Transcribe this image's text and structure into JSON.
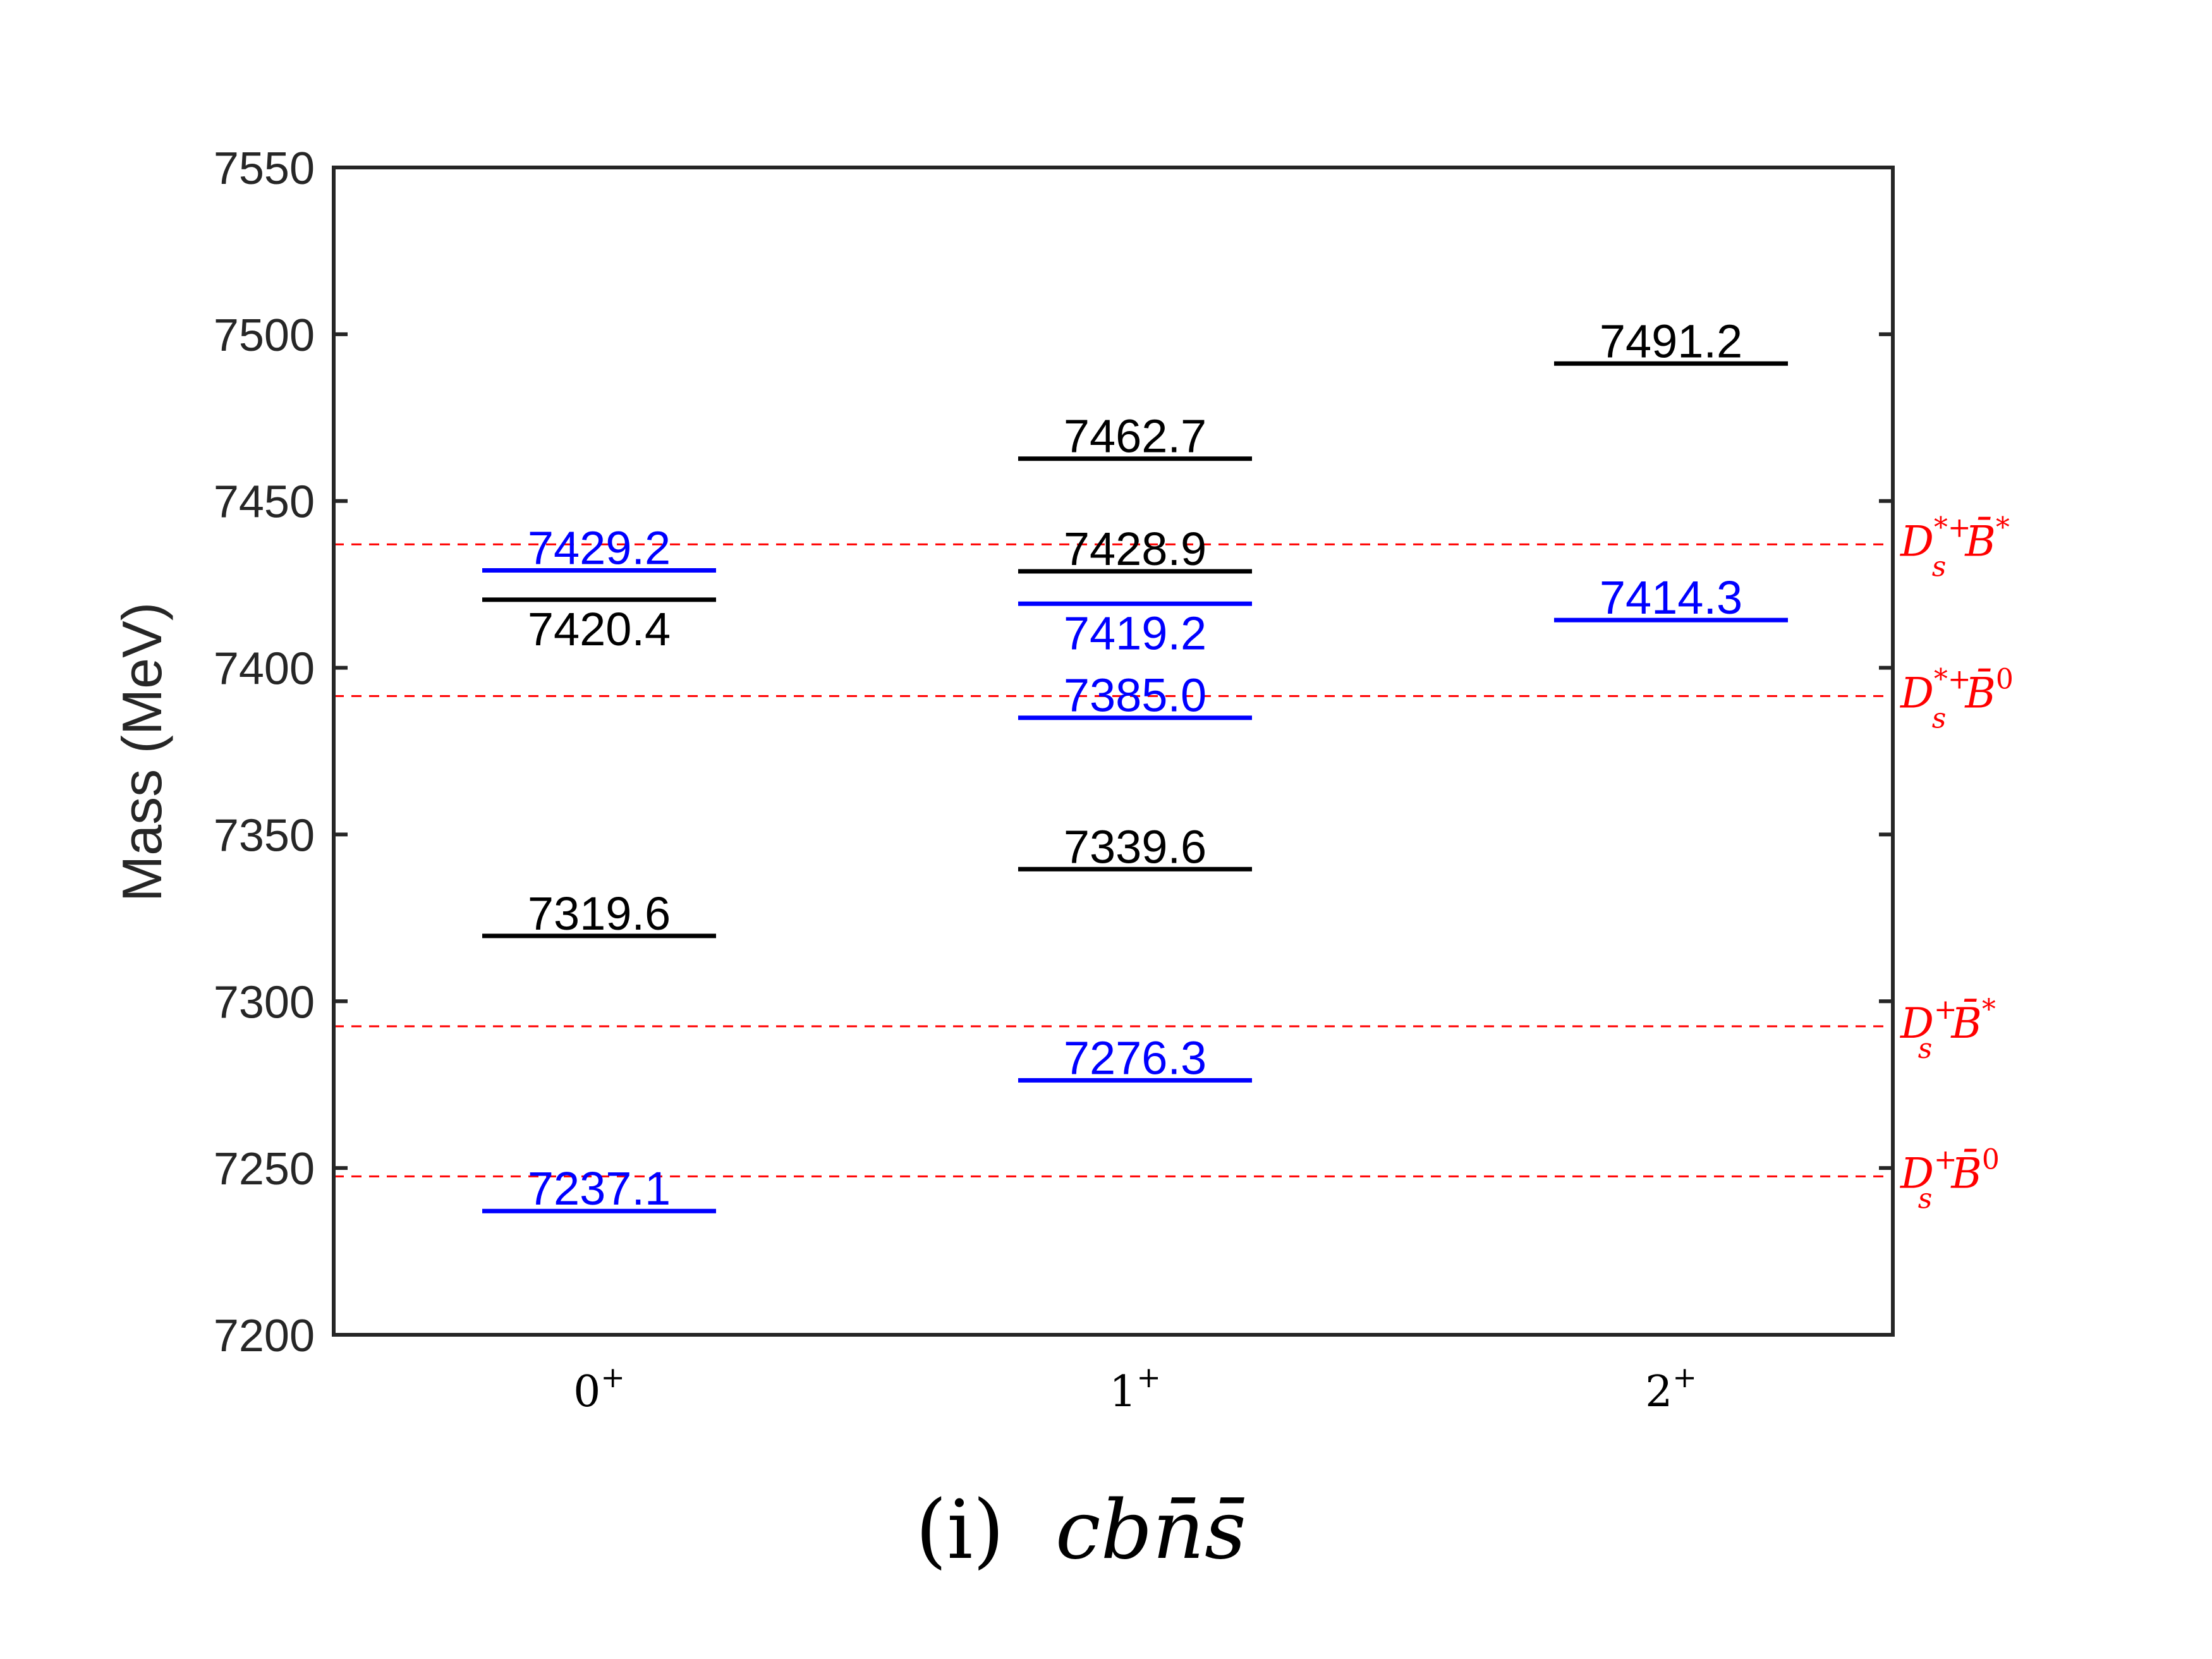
{
  "chart_data": {
    "type": "level-diagram",
    "ylabel": "Mass (MeV)",
    "ylim": [
      7200,
      7550
    ],
    "yticks": [
      "7200",
      "7250",
      "7300",
      "7350",
      "7400",
      "7450",
      "7500",
      "7550"
    ],
    "categories": [
      {
        "base": "0",
        "sup": "+"
      },
      {
        "base": "1",
        "sup": "+"
      },
      {
        "base": "2",
        "sup": "+"
      }
    ],
    "colors": {
      "black": "#000000",
      "blue": "#0000ff",
      "threshold": "#ff0000",
      "axis": "#262626"
    },
    "levels": [
      {
        "category": 0,
        "value": 7429.2,
        "label": "7429.2",
        "color": "blue",
        "label_pos": "above"
      },
      {
        "category": 0,
        "value": 7420.4,
        "label": "7420.4",
        "color": "black",
        "label_pos": "below"
      },
      {
        "category": 0,
        "value": 7319.6,
        "label": "7319.6",
        "color": "black",
        "label_pos": "above"
      },
      {
        "category": 0,
        "value": 7237.1,
        "label": "7237.1",
        "color": "blue",
        "label_pos": "above"
      },
      {
        "category": 1,
        "value": 7462.7,
        "label": "7462.7",
        "color": "black",
        "label_pos": "above"
      },
      {
        "category": 1,
        "value": 7428.9,
        "label": "7428.9",
        "color": "black",
        "label_pos": "above"
      },
      {
        "category": 1,
        "value": 7419.2,
        "label": "7419.2",
        "color": "blue",
        "label_pos": "below"
      },
      {
        "category": 1,
        "value": 7385.0,
        "label": "7385.0",
        "color": "blue",
        "label_pos": "above"
      },
      {
        "category": 1,
        "value": 7339.6,
        "label": "7339.6",
        "color": "black",
        "label_pos": "above"
      },
      {
        "category": 1,
        "value": 7276.3,
        "label": "7276.3",
        "color": "blue",
        "label_pos": "above"
      },
      {
        "category": 2,
        "value": 7491.2,
        "label": "7491.2",
        "color": "black",
        "label_pos": "above"
      },
      {
        "category": 2,
        "value": 7414.3,
        "label": "7414.3",
        "color": "blue",
        "label_pos": "above"
      }
    ],
    "thresholds": [
      {
        "value": 7437.0,
        "label": {
          "base": "D",
          "sub": "s",
          "sup": "*+",
          "bar": "B̄",
          "barsup": "*"
        }
      },
      {
        "value": 7391.5,
        "label": {
          "base": "D",
          "sub": "s",
          "sup": "*+",
          "bar": "B̄",
          "barsup": "0"
        }
      },
      {
        "value": 7292.5,
        "label": {
          "base": "D",
          "sub": "s",
          "sup": "+",
          "bar": "B̄",
          "barsup": "*"
        }
      },
      {
        "value": 7247.5,
        "label": {
          "base": "D",
          "sub": "s",
          "sup": "+",
          "bar": "B̄",
          "barsup": "0"
        }
      }
    ],
    "caption": {
      "prefix": "(i)",
      "formula": "cbn̄s̄"
    }
  }
}
